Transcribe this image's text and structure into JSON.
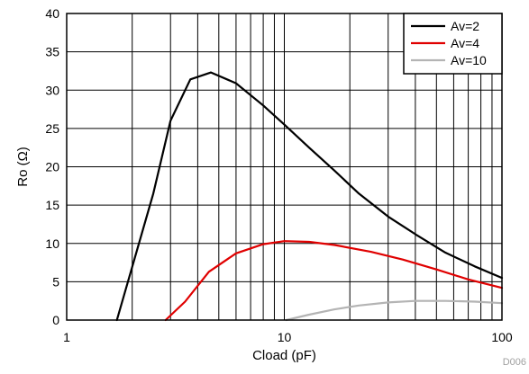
{
  "chart_data": {
    "type": "line",
    "title": "",
    "xlabel": "Cload (pF)",
    "ylabel": "Ro (Ω)",
    "xscale": "log",
    "xlim": [
      1,
      100
    ],
    "ylim": [
      0,
      40
    ],
    "xticks": [
      1,
      10,
      100
    ],
    "xtick_labels": [
      "1",
      "10",
      "100"
    ],
    "yticks": [
      0,
      5,
      10,
      15,
      20,
      25,
      30,
      35,
      40
    ],
    "ytick_labels": [
      "0",
      "5",
      "10",
      "15",
      "20",
      "25",
      "30",
      "35",
      "40"
    ],
    "grid": true,
    "legend_position": "top-right",
    "watermark": "D006",
    "series": [
      {
        "name": "Av=2",
        "color": "#000000",
        "x": [
          1.7,
          2.05,
          2.5,
          3.0,
          3.7,
          4.6,
          6.0,
          8.0,
          10.0,
          13.0,
          17.0,
          22.0,
          30.0,
          40.0,
          55.0,
          75.0,
          100.0
        ],
        "y": [
          0.0,
          8.0,
          16.5,
          26.0,
          31.4,
          32.3,
          30.9,
          28.0,
          25.5,
          22.5,
          19.5,
          16.5,
          13.5,
          11.2,
          8.8,
          7.0,
          5.5
        ]
      },
      {
        "name": "Av=4",
        "color": "#e00000",
        "x": [
          2.85,
          3.5,
          4.5,
          6.0,
          8.0,
          10.0,
          13.0,
          17.0,
          25.0,
          35.0,
          50.0,
          70.0,
          100.0
        ],
        "y": [
          0.0,
          2.4,
          6.3,
          8.7,
          9.9,
          10.3,
          10.2,
          9.8,
          8.9,
          7.9,
          6.6,
          5.3,
          4.2
        ]
      },
      {
        "name": "Av=10",
        "color": "#b4b4b4",
        "x": [
          10.2,
          13.0,
          17.0,
          22.0,
          30.0,
          40.0,
          55.0,
          75.0,
          100.0
        ],
        "y": [
          0.0,
          0.7,
          1.4,
          1.9,
          2.3,
          2.5,
          2.5,
          2.4,
          2.2
        ]
      }
    ]
  }
}
